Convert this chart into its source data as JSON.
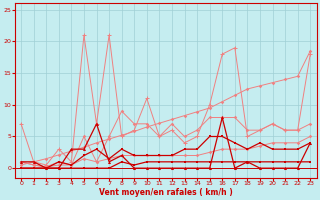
{
  "x": [
    0,
    1,
    2,
    3,
    4,
    5,
    6,
    7,
    8,
    9,
    10,
    11,
    12,
    13,
    14,
    15,
    16,
    17,
    18,
    19,
    20,
    21,
    22,
    23
  ],
  "line_pink_spiky1": [
    7,
    1,
    0.5,
    3,
    1,
    21,
    7,
    21,
    5,
    6,
    11,
    5,
    6,
    4,
    5,
    10,
    18,
    19,
    5,
    6,
    7,
    6,
    6,
    18
  ],
  "line_pink_spiky2": [
    1,
    0.5,
    0.2,
    1,
    0.5,
    5,
    1,
    5,
    9,
    7,
    7,
    5,
    7,
    5,
    6,
    8,
    8,
    8,
    6,
    6,
    7,
    6,
    6,
    7
  ],
  "line_pink_trend": [
    0.5,
    1.0,
    1.5,
    2.1,
    2.7,
    3.3,
    4.0,
    4.6,
    5.2,
    5.8,
    6.5,
    7.1,
    7.7,
    8.3,
    8.9,
    9.5,
    10.5,
    11.5,
    12.5,
    13.0,
    13.5,
    14.0,
    14.5,
    18.5
  ],
  "line_pink_low": [
    1,
    0.5,
    0.2,
    0.5,
    0.5,
    1.5,
    1,
    1.5,
    2,
    2,
    2,
    2,
    2,
    2,
    2,
    2.5,
    3,
    3,
    3,
    3.5,
    4,
    4,
    4,
    5
  ],
  "line_red_spiky": [
    1,
    1,
    0,
    0,
    3,
    3,
    7,
    1,
    2,
    0,
    0,
    0,
    0,
    0,
    0,
    0,
    8,
    0,
    1,
    0,
    0,
    0,
    0,
    4
  ],
  "line_red_mid": [
    0,
    0,
    0,
    1,
    0.5,
    2,
    3,
    1.5,
    3,
    2,
    2,
    2,
    2,
    3,
    3,
    5,
    5,
    4,
    3,
    4,
    3,
    3,
    3,
    4
  ],
  "line_red_low": [
    0,
    0,
    0,
    0,
    0,
    0,
    0,
    0,
    1,
    0.5,
    1,
    1,
    1,
    1,
    1,
    1,
    1,
    1,
    1,
    1,
    1,
    1,
    1,
    1
  ],
  "bg": "#c5edf0",
  "grid_color": "#a0d0d5",
  "pink": "#f08080",
  "red": "#cc0000",
  "xlabel": "Vent moyen/en rafales ( km/h )",
  "ylim": [
    -1.5,
    26
  ],
  "xlim": [
    -0.5,
    23.5
  ],
  "yticks": [
    0,
    5,
    10,
    15,
    20,
    25
  ],
  "xticks": [
    0,
    1,
    2,
    3,
    4,
    5,
    6,
    7,
    8,
    9,
    10,
    11,
    12,
    13,
    14,
    15,
    16,
    17,
    18,
    19,
    20,
    21,
    22,
    23
  ]
}
